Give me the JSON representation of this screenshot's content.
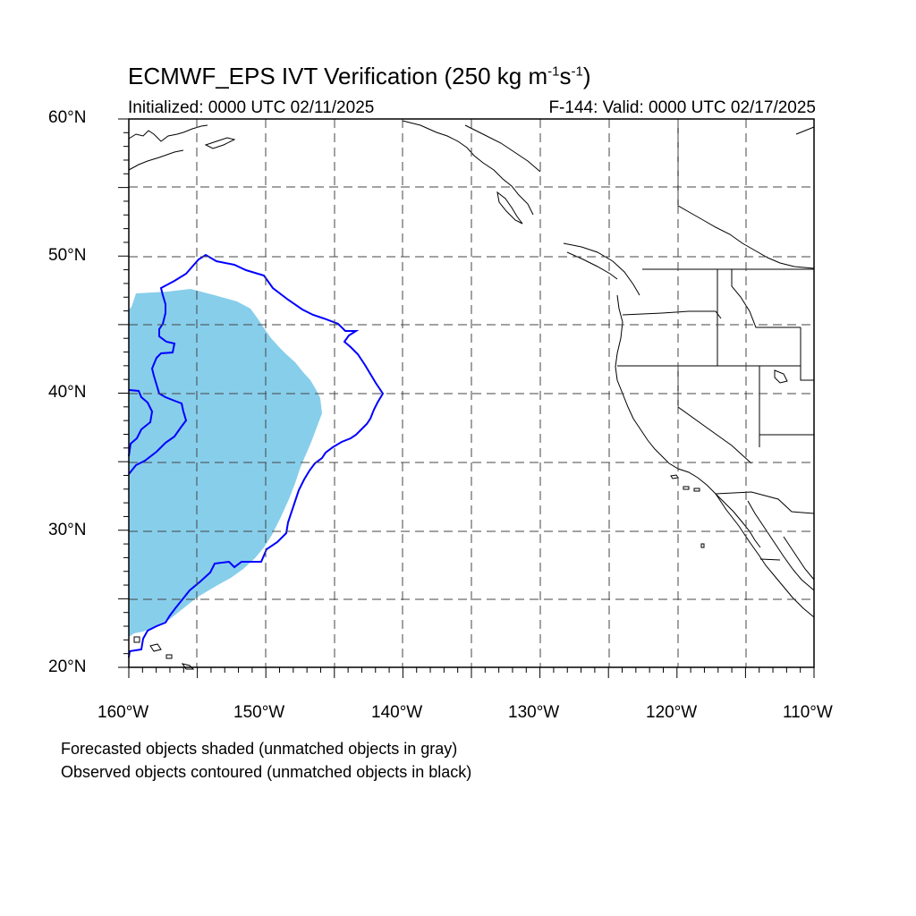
{
  "title": {
    "main": "ECMWF_EPS IVT Verification (250 kg m",
    "exp1": "-1",
    "mid": "s",
    "exp2": "-1",
    "end": ")"
  },
  "subtitle": {
    "left": "Initialized: 0000 UTC 02/11/2025",
    "right": "F-144: Valid: 0000 UTC 02/17/2025"
  },
  "lat_labels": [
    "60°N",
    "50°N",
    "40°N",
    "30°N",
    "20°N"
  ],
  "lon_labels": [
    "160°W",
    "150°W",
    "140°W",
    "130°W",
    "120°W",
    "110°W"
  ],
  "legend": {
    "forecast": "Forecasted objects shaded (unmatched objects in gray)",
    "observed": "Observed objects contoured (unmatched objects in black)"
  },
  "colors": {
    "forecast_fill": "#87CEEB",
    "observed_contour": "#0000FF",
    "coastline": "#000000",
    "grid": "#000000"
  },
  "map": {
    "lon_range": [
      -160,
      -110
    ],
    "lat_range": [
      20,
      60
    ],
    "grid_spacing_deg": 5
  }
}
